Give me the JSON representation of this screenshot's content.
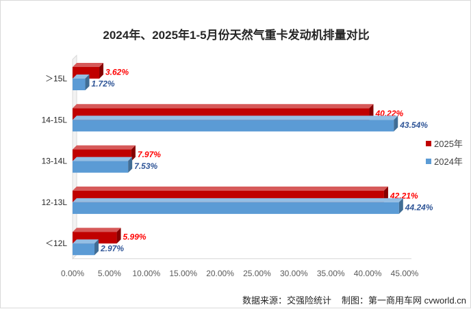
{
  "chart_data": {
    "type": "bar",
    "orientation": "horizontal",
    "title": "2024年、2025年1-5月份天然气重卡发动机排量对比",
    "categories": [
      "＞15L",
      "14-15L",
      "13-14L",
      "12-13L",
      "＜12L"
    ],
    "series": [
      {
        "name": "2025年",
        "color": "#c00000",
        "label_color": "#ff0000",
        "values": [
          3.62,
          40.22,
          7.97,
          42.21,
          5.99
        ],
        "labels": [
          "3.62%",
          "40.22%",
          "7.97%",
          "42.21%",
          "5.99%"
        ]
      },
      {
        "name": "2024年",
        "color": "#5b9bd5",
        "label_color": "#2f5597",
        "values": [
          1.72,
          43.54,
          7.53,
          44.24,
          2.97
        ],
        "labels": [
          "1.72%",
          "43.54%",
          "7.53%",
          "44.24%",
          "2.97%"
        ]
      }
    ],
    "xlim": [
      0,
      45
    ],
    "xticks": [
      "0.00%",
      "5.00%",
      "10.00%",
      "15.00%",
      "20.00%",
      "25.00%",
      "30.00%",
      "35.00%",
      "40.00%",
      "45.00%"
    ],
    "legend_position": "right",
    "grid": false,
    "style": "3d"
  },
  "footer": {
    "source": "数据来源：交强险统计",
    "credit": "制图：第一商用车网 cvworld.cn"
  }
}
